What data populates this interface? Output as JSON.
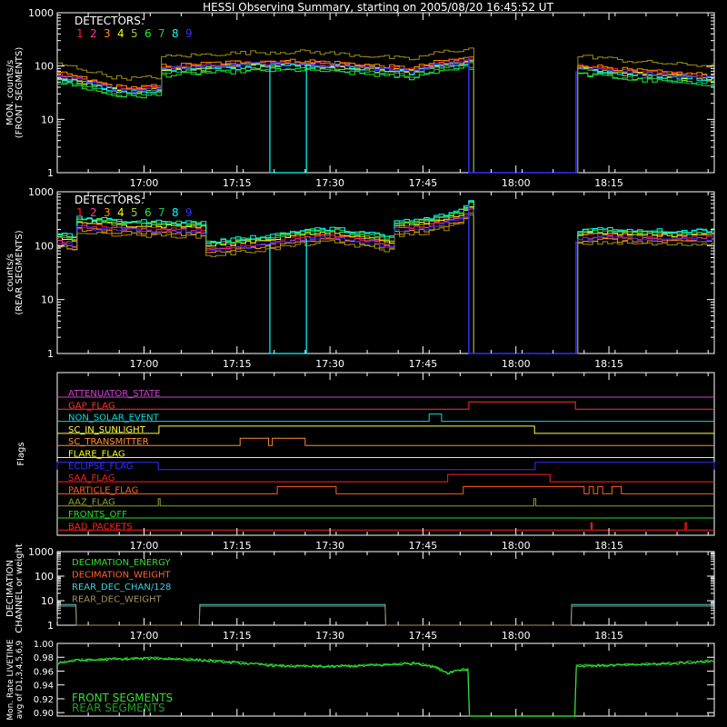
{
  "title": "HESSI Observing Summary, starting on 2005/08/20 16:45:52 UT",
  "colors": {
    "background": "#000000",
    "axes": "#ffffff",
    "det1": "#ff2020",
    "det2": "#ff3a8c",
    "det3": "#ff8c00",
    "det4": "#ffff00",
    "det5": "#9acd32",
    "det6": "#22ee22",
    "det7": "#20c060",
    "det8": "#00ffff",
    "det9": "#3030ff",
    "olive": "#a09010",
    "mon_green": "#30d030"
  },
  "chart_data": [
    {
      "id": "front",
      "type": "line",
      "ylabel": [
        "MON. counts/s",
        "(FRONT SEGMENTS)"
      ],
      "yscale": "log",
      "ylim": [
        1,
        1000
      ],
      "yticks": [
        "1",
        "10",
        "100",
        "1000"
      ],
      "xlim": [
        0,
        106
      ],
      "xticks": [
        {
          "x": 14,
          "label": "17:00"
        },
        {
          "x": 29,
          "label": "17:15"
        },
        {
          "x": 44,
          "label": "17:30"
        },
        {
          "x": 59,
          "label": "17:45"
        },
        {
          "x": 74,
          "label": "18:00"
        },
        {
          "x": 89,
          "label": "18:15"
        }
      ],
      "legend_title": "DETECTORS:",
      "legend_numbers": [
        "1",
        "2",
        "3",
        "4",
        "5",
        "6",
        "7",
        "8",
        "9"
      ],
      "legend_colors": [
        "#ff2020",
        "#ff3a8c",
        "#ff8c00",
        "#ffff00",
        "#9acd32",
        "#22ee22",
        "#20c060",
        "#00ffff",
        "#3030ff"
      ],
      "gaps": [
        [
          66.4,
          83.7
        ]
      ],
      "series": [
        {
          "color": "#ff2020",
          "offset": 1.0
        },
        {
          "color": "#ff3a8c",
          "offset": 0.95
        },
        {
          "color": "#ff8c00",
          "offset": 1.05
        },
        {
          "color": "#ffff00",
          "offset": 0.9
        },
        {
          "color": "#9acd32",
          "offset": 0.85
        },
        {
          "color": "#22ee22",
          "offset": 0.7
        },
        {
          "color": "#20c060",
          "offset": 0.75
        },
        {
          "color": "#00ffff",
          "offset": 0.88
        },
        {
          "color": "#3030ff",
          "offset": 0.92
        },
        {
          "color": "#a09010",
          "offset": 1.55
        }
      ],
      "base": [
        [
          0,
          70
        ],
        [
          3,
          60
        ],
        [
          6,
          48
        ],
        [
          9,
          40
        ],
        [
          12,
          38
        ],
        [
          16,
          40
        ],
        [
          16.2,
          95
        ],
        [
          20,
          100
        ],
        [
          25,
          108
        ],
        [
          30,
          115
        ],
        [
          35,
          118
        ],
        [
          40,
          120
        ],
        [
          45,
          110
        ],
        [
          50,
          100
        ],
        [
          55,
          90
        ],
        [
          57,
          85
        ],
        [
          59,
          100
        ],
        [
          62,
          120
        ],
        [
          66.3,
          135
        ],
        [
          83.8,
          100
        ],
        [
          88,
          92
        ],
        [
          92,
          80
        ],
        [
          96,
          75
        ],
        [
          100,
          70
        ],
        [
          106,
          65
        ]
      ],
      "dropouts": [
        {
          "color": "#00ffff",
          "x0": 34.3,
          "x1": 40.2,
          "y": 1
        }
      ]
    },
    {
      "id": "rear",
      "type": "line",
      "ylabel": [
        "counts/s",
        "(REAR SEGMENTS)"
      ],
      "yscale": "log",
      "ylim": [
        1,
        1000
      ],
      "yticks": [
        "1",
        "10",
        "100",
        "1000"
      ],
      "xlim": [
        0,
        106
      ],
      "xticks": [
        {
          "x": 14,
          "label": "17:00"
        },
        {
          "x": 29,
          "label": "17:15"
        },
        {
          "x": 44,
          "label": "17:30"
        },
        {
          "x": 59,
          "label": "17:45"
        },
        {
          "x": 74,
          "label": "18:00"
        },
        {
          "x": 89,
          "label": "18:15"
        }
      ],
      "legend_title": "DETECTORS:",
      "legend_numbers": [
        "1",
        "2",
        "3",
        "4",
        "5",
        "6",
        "7",
        "8",
        "9"
      ],
      "legend_colors": [
        "#ff2020",
        "#ff3a8c",
        "#ff8c00",
        "#ffff00",
        "#9acd32",
        "#22ee22",
        "#20c060",
        "#00ffff",
        "#3030ff"
      ],
      "gaps": [
        [
          66.4,
          83.7
        ]
      ],
      "series": [
        {
          "color": "#ff2020",
          "offset": 1.0
        },
        {
          "color": "#ff3a8c",
          "offset": 0.92
        },
        {
          "color": "#ff8c00",
          "offset": 0.8
        },
        {
          "color": "#ffff00",
          "offset": 1.1
        },
        {
          "color": "#9acd32",
          "offset": 1.15
        },
        {
          "color": "#22ee22",
          "offset": 1.25
        },
        {
          "color": "#20c060",
          "offset": 1.2
        },
        {
          "color": "#00ffff",
          "offset": 1.3
        },
        {
          "color": "#3030ff",
          "offset": 0.88
        },
        {
          "color": "#a09010",
          "offset": 0.72
        }
      ],
      "base": [
        [
          0,
          130
        ],
        [
          2,
          115
        ],
        [
          3,
          110
        ],
        [
          3.1,
          250
        ],
        [
          8,
          230
        ],
        [
          14,
          215
        ],
        [
          20,
          210
        ],
        [
          23.9,
          205
        ],
        [
          24,
          90
        ],
        [
          28,
          100
        ],
        [
          34,
          120
        ],
        [
          40,
          150
        ],
        [
          44,
          160
        ],
        [
          50,
          130
        ],
        [
          53.9,
          110
        ],
        [
          54,
          220
        ],
        [
          58,
          230
        ],
        [
          62,
          280
        ],
        [
          65,
          360
        ],
        [
          66.3,
          520
        ],
        [
          83.8,
          150
        ],
        [
          88,
          160
        ],
        [
          94,
          150
        ],
        [
          100,
          145
        ],
        [
          105,
          150
        ],
        [
          106,
          180
        ]
      ],
      "dropouts": [
        {
          "color": "#00ffff",
          "x0": 34.3,
          "x1": 40.2,
          "y": 1
        }
      ]
    },
    {
      "id": "flags",
      "type": "step",
      "ylabel": [
        "Flags"
      ],
      "xlim": [
        0,
        106
      ],
      "xticks": [
        {
          "x": 14,
          "label": "17:00"
        },
        {
          "x": 29,
          "label": "17:15"
        },
        {
          "x": 44,
          "label": "17:30"
        },
        {
          "x": 59,
          "label": "17:45"
        },
        {
          "x": 74,
          "label": "18:00"
        },
        {
          "x": 89,
          "label": "18:15"
        }
      ],
      "flags": [
        {
          "name": "ATTENUATOR_STATE",
          "color": "#d040d0",
          "on": []
        },
        {
          "name": "GAP_FLAG",
          "color": "#ff3030",
          "on": [
            [
              66.4,
              83.6
            ]
          ]
        },
        {
          "name": "NON_SOLAR_EVENT",
          "color": "#00e0e0",
          "on": [
            [
              60,
              62
            ]
          ]
        },
        {
          "name": "SC_IN_SUNLIGHT",
          "color": "#ffff40",
          "on": [
            [
              16.4,
              77.0
            ]
          ],
          "inverted": true
        },
        {
          "name": "SC_TRANSMITTER",
          "color": "#ff8c30",
          "on": [
            [
              29.5,
              34.1
            ],
            [
              34.7,
              40.0
            ]
          ]
        },
        {
          "name": "FLARE_FLAG",
          "color": "#ffff00",
          "on": []
        },
        {
          "name": "ECLIPSE_FLAG",
          "color": "#3030ff",
          "on": [
            [
              0,
              16.3
            ],
            [
              77.1,
              106
            ]
          ]
        },
        {
          "name": "SAA_FLAG",
          "color": "#ff2020",
          "on": [
            [
              63,
              79.5
            ]
          ]
        },
        {
          "name": "PARTICLE_FLAG",
          "color": "#ff6020",
          "on": [
            [
              35.5,
              45
            ],
            [
              65.5,
              85
            ],
            [
              85.8,
              86.5
            ],
            [
              87.2,
              88
            ],
            [
              89.5,
              91
            ]
          ]
        },
        {
          "name": "AAZ_FLAG",
          "color": "#90a020",
          "on": [
            [
              16.3,
              16.6
            ],
            [
              76.9,
              77.2
            ]
          ]
        },
        {
          "name": "FRONTS_OFF",
          "color": "#20e020",
          "on": []
        },
        {
          "name": "BAD_PACKETS",
          "color": "#ff2020",
          "on": [
            [
              86.1,
              86.3
            ],
            [
              101.3,
              101.5
            ]
          ]
        }
      ]
    },
    {
      "id": "decimation",
      "type": "step",
      "ylabel": [
        "DECIMATION",
        "CHANNEL or weight"
      ],
      "yscale": "log",
      "ylim": [
        1,
        1000
      ],
      "yticks": [
        "1",
        "10",
        "100",
        "1000"
      ],
      "xlim": [
        0,
        106
      ],
      "xticks": [
        {
          "x": 14,
          "label": "17:00"
        },
        {
          "x": 29,
          "label": "17:15"
        },
        {
          "x": 44,
          "label": "17:30"
        },
        {
          "x": 59,
          "label": "17:45"
        },
        {
          "x": 74,
          "label": "18:00"
        },
        {
          "x": 89,
          "label": "18:15"
        }
      ],
      "legend": [
        {
          "name": "DECIMATION_ENERGY",
          "color": "#30e030"
        },
        {
          "name": "DECIMATION_WEIGHT",
          "color": "#ff6030"
        },
        {
          "name": "REAR_DEC_CHAN/128",
          "color": "#40d0e0"
        },
        {
          "name": "REAR_DEC_WEIGHT",
          "color": "#a09060"
        }
      ],
      "steps": [
        {
          "color": "#40d0e0",
          "points": [
            [
              0,
              1
            ],
            [
              0.1,
              7
            ],
            [
              3,
              7
            ],
            [
              3.1,
              1
            ],
            [
              22.9,
              1
            ],
            [
              23,
              7
            ],
            [
              52.9,
              7
            ],
            [
              53,
              1
            ],
            [
              82.9,
              1
            ],
            [
              83,
              7
            ],
            [
              106,
              7
            ]
          ]
        },
        {
          "color": "#a09060",
          "points": [
            [
              0,
              1
            ],
            [
              0.1,
              6
            ],
            [
              3,
              6
            ],
            [
              3.1,
              1
            ],
            [
              22.9,
              1
            ],
            [
              23,
              6
            ],
            [
              52.9,
              6
            ],
            [
              53,
              1
            ],
            [
              82.9,
              1
            ],
            [
              83,
              6
            ],
            [
              106,
              6
            ]
          ]
        }
      ]
    },
    {
      "id": "livetime",
      "type": "line",
      "ylabel": [
        "Mon. Rate LIVETIME",
        "avg of D1,3,4,5,6,9"
      ],
      "ylim": [
        0.895,
        1.0
      ],
      "yticks": [
        "0.90",
        "0.92",
        "0.94",
        "0.96",
        "0.98",
        "1.00"
      ],
      "ytickvals": [
        0.9,
        0.92,
        0.94,
        0.96,
        0.98,
        1.0
      ],
      "xlim": [
        0,
        106
      ],
      "gaps": [
        [
          66.4,
          83.7
        ]
      ],
      "legend": [
        {
          "name": "FRONT SEGMENTS",
          "color": "#30e030"
        },
        {
          "name": "REAR SEGMENTS",
          "color": "#20a020"
        }
      ],
      "base": [
        [
          0,
          0.972
        ],
        [
          3,
          0.976
        ],
        [
          10,
          0.978
        ],
        [
          16,
          0.979
        ],
        [
          22,
          0.977
        ],
        [
          30,
          0.972
        ],
        [
          36,
          0.968
        ],
        [
          44,
          0.967
        ],
        [
          52,
          0.969
        ],
        [
          58,
          0.972
        ],
        [
          61,
          0.966
        ],
        [
          63,
          0.958
        ],
        [
          64.5,
          0.962
        ],
        [
          66.3,
          0.963
        ],
        [
          83.8,
          0.968
        ],
        [
          90,
          0.969
        ],
        [
          98,
          0.971
        ],
        [
          106,
          0.975
        ]
      ]
    }
  ]
}
